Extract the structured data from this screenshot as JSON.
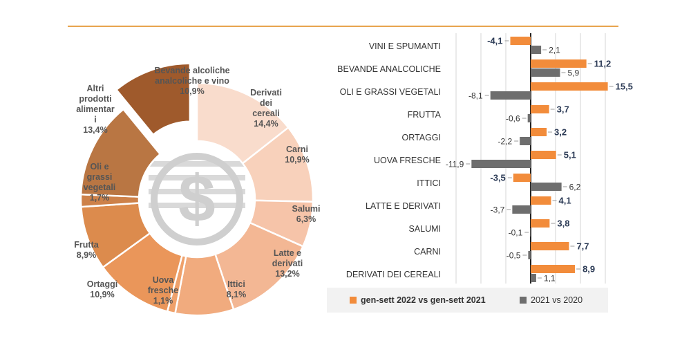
{
  "chart_data": [
    {
      "type": "pie",
      "subtype": "donut",
      "slices": [
        {
          "name": "Derivati dei cereali",
          "lines": [
            "Derivati",
            "dei",
            "cereali",
            "14,4%"
          ],
          "value": 14.4,
          "color": "#F9D9C8"
        },
        {
          "name": "Carni",
          "lines": [
            "Carni",
            "10,9%"
          ],
          "value": 10.9,
          "color": "#F7CDB6"
        },
        {
          "name": "Salumi",
          "lines": [
            "Salumi",
            "6,3%"
          ],
          "value": 6.3,
          "color": "#F5C0A2"
        },
        {
          "name": "Latte e derivati",
          "lines": [
            "Latte e",
            "derivati",
            "13,2%"
          ],
          "value": 13.2,
          "color": "#F2B28C"
        },
        {
          "name": "Ittici",
          "lines": [
            "Ittici",
            "8,1%"
          ],
          "value": 8.1,
          "color": "#F0A574"
        },
        {
          "name": "Uova fresche",
          "lines": [
            "Uova",
            "fresche",
            "1,1%"
          ],
          "value": 1.1,
          "color": "#EE9A60"
        },
        {
          "name": "Ortaggi",
          "lines": [
            "Ortaggi",
            "10,9%"
          ],
          "value": 10.9,
          "color": "#E88E4E"
        },
        {
          "name": "Frutta",
          "lines": [
            "Frutta",
            "8,9%"
          ],
          "value": 8.9,
          "color": "#D9823F"
        },
        {
          "name": "Oli e grassi vegetali",
          "lines": [
            "Oli e",
            "grassi",
            "vegetali",
            "1,7%"
          ],
          "value": 1.7,
          "color": "#C9773B"
        },
        {
          "name": "Altri prodotti alimentari",
          "lines": [
            "Altri",
            "prodotti",
            "alimentar",
            "i",
            "13,4%"
          ],
          "value": 13.4,
          "color": "#B46C35"
        },
        {
          "name": "Bevande alcoliche analcoliche e vino",
          "lines": [
            "Bevande alcoliche",
            "analcoliche e vino",
            "10,9%"
          ],
          "value": 10.9,
          "color": "#9F5A2C",
          "exploded": true
        }
      ],
      "center_icon": "dollar-icon"
    },
    {
      "type": "bar",
      "orientation": "horizontal",
      "categories": [
        "VINI E SPUMANTI",
        "BEVANDE ANALCOLICHE",
        "OLI E GRASSI VEGETALI",
        "FRUTTA",
        "ORTAGGI",
        "UOVA FRESCHE",
        "ITTICI",
        "LATTE E DERIVATI",
        "SALUMI",
        "CARNI",
        "DERIVATI DEI CEREALI"
      ],
      "series": [
        {
          "name": "gen-sett 2022 vs gen-sett 2021",
          "color": "#F28C3B",
          "values": [
            -4.1,
            11.2,
            15.5,
            3.7,
            3.2,
            5.1,
            -3.5,
            4.1,
            3.8,
            7.7,
            8.9
          ],
          "labels": [
            "-4,1",
            "11,2",
            "15,5",
            "3,7",
            "3,2",
            "5,1",
            "-3,5",
            "4,1",
            "3,8",
            "7,7",
            "8,9"
          ]
        },
        {
          "name": "2021 vs 2020",
          "color": "#6E6E6E",
          "values": [
            2.1,
            5.9,
            -8.1,
            -0.6,
            -2.2,
            -11.9,
            6.2,
            -3.7,
            -0.1,
            -0.5,
            1.1
          ],
          "labels": [
            "2,1",
            "5,9",
            "-8,1",
            "-0,6",
            "-2,2",
            "-11,9",
            "6,2",
            "-3,7",
            "-0,1",
            "-0,5",
            "1,1"
          ]
        }
      ],
      "xlim": [
        -12,
        16
      ],
      "grid": true,
      "legend": "bottom"
    }
  ]
}
